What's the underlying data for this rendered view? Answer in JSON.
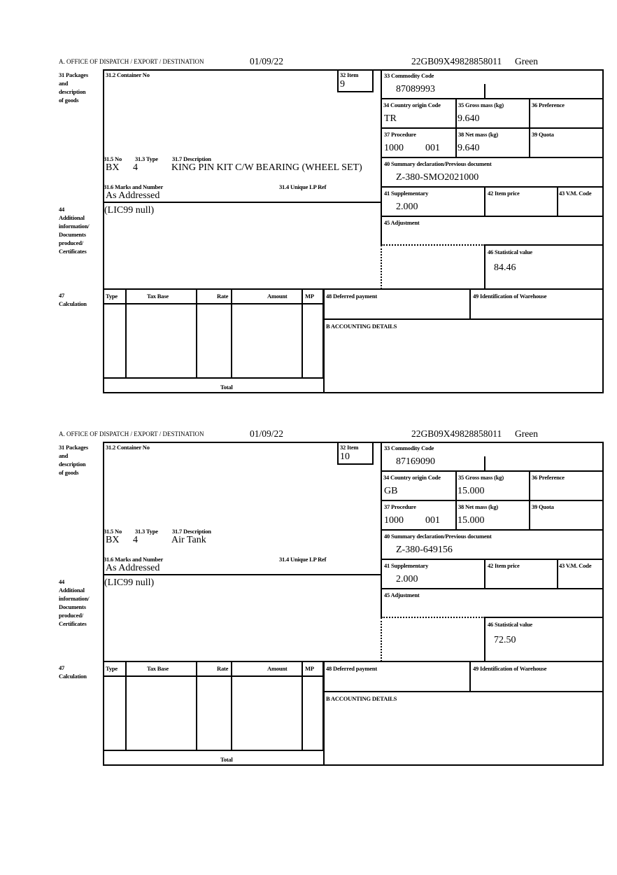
{
  "labels": {
    "office": "A.  OFFICE OF DISPATCH / EXPORT / DESTINATION",
    "packages": "31 Packages\nand\ndescription\nof goods",
    "container_no": "31.2 Container No",
    "item": "32 Item",
    "no": "31.5 No",
    "type": "31.3 Type",
    "description": "31.7 Description",
    "marks": "31.6 Marks and Number",
    "unique_lp_ref": "31.4 Unique LP Ref",
    "additional_info": "44\nAdditional\ninformation/\nDocuments\nproduced/\nCertificates",
    "calculation": "47\nCalculation",
    "commodity_code": "33 Commodity Code",
    "country_origin": "34 Country origin Code",
    "gross_mass": "35 Gross mass (kg)",
    "preference": "36 Preference",
    "procedure": "37 Procedure",
    "net_mass": "38 Net mass (kg)",
    "quota": "39 Quota",
    "summary_declaration": "40 Summary declaration/Previous document",
    "supplementary": "41 Supplementary",
    "item_price": "42 Item price",
    "vm_code": "43 V.M. Code",
    "adjustment": "45 Adjustment",
    "statistical_value": "46 Statistical value",
    "deferred_payment": "48 Deferred payment",
    "warehouse_id": "49 Identification of Warehouse",
    "accounting_details": "B ACCOUNTING DETAILS",
    "calc_type": "Type",
    "calc_tax_base": "Tax Base",
    "calc_rate": "Rate",
    "calc_amount": "Amount",
    "calc_mp": "MP",
    "calc_total": "Total"
  },
  "forms": [
    {
      "date": "01/09/22",
      "reference": "22GB09X49828858011",
      "route": "Green",
      "item": "9",
      "no": "BX",
      "type": "4",
      "description": "KING PIN KIT C/W BEARING (WHEEL SET)",
      "marks": "As Addressed",
      "additional_info": "(LIC99 null)",
      "commodity_code": "87089993",
      "country_origin": "TR",
      "gross_mass": "9.640",
      "procedure": "1000",
      "procedure_additional": "001",
      "net_mass": "9.640",
      "summary_declaration": "Z-380-SMO2021000",
      "supplementary": "2.000",
      "statistical_value": "84.46"
    },
    {
      "date": "01/09/22",
      "reference": "22GB09X49828858011",
      "route": "Green",
      "item": "10",
      "no": "BX",
      "type": "4",
      "description": "Air Tank",
      "marks": "As Addressed",
      "additional_info": "(LIC99 null)",
      "commodity_code": "87169090",
      "country_origin": "GB",
      "gross_mass": "15.000",
      "procedure": "1000",
      "procedure_additional": "001",
      "net_mass": "15.000",
      "summary_declaration": "Z-380-649156",
      "supplementary": "2.000",
      "statistical_value": "72.50"
    }
  ]
}
